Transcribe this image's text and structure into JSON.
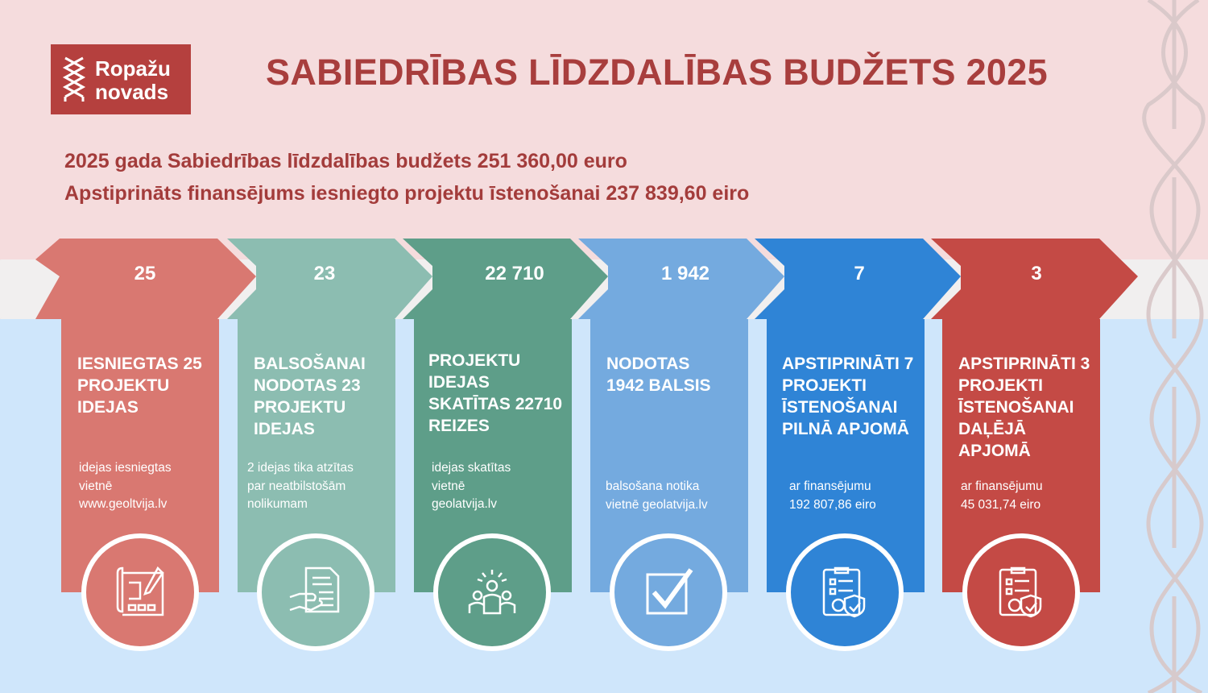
{
  "logo": {
    "line1": "Ropažu",
    "line2": "novads"
  },
  "title": "SABIEDRĪBAS LĪDZDALĪBAS BUDŽETS 2025",
  "subtitle_lines": [
    "2025 gada Sabiedrības līdzdalības budžets 251 360,00 euro",
    "Apstiprināts finansējums iesniegto projektu īstenošanai 237 839,60 eiro"
  ],
  "colors": {
    "step1": "#d97871",
    "step2": "#8cbdb1",
    "step3": "#5e9e89",
    "step4": "#74aadf",
    "step5": "#2f84d6",
    "step6": "#c44a45",
    "title": "#a83e3d",
    "top_band": "#f5dcdd",
    "bottom_band": "#cfe6fb"
  },
  "steps": [
    {
      "number": "25",
      "title": "IESNIEGTAS 25 PROJEKTU IDEJAS",
      "desc": [
        "idejas iesniegtas",
        "vietnē",
        "www.geoltvija.lv"
      ],
      "icon": "blueprint-pen-icon"
    },
    {
      "number": "23",
      "title": "BALSOŠANAI NODOTAS 23 PROJEKTU IDEJAS",
      "desc": [
        "2 idejas tika atzītas",
        "par neatbilstošām",
        "nolikumam"
      ],
      "icon": "hand-document-icon"
    },
    {
      "number": "22 710",
      "title": "PROJEKTU IDEJAS SKATĪTAS 22710 REIZES",
      "desc": [
        "idejas skatītas",
        "vietnē",
        "geolatvija.lv"
      ],
      "icon": "group-idea-icon"
    },
    {
      "number": "1 942",
      "title": "NODOTAS 1942 BALSIS",
      "desc": [
        "balsošana notika",
        "vietnē geolatvija.lv"
      ],
      "icon": "checkbox-icon"
    },
    {
      "number": "7",
      "title": "APSTIPRINĀTI 7 PROJEKTI ĪSTENOŠANAI PILNĀ APJOMĀ",
      "desc": [
        "ar finansējumu",
        "192 807,86 eiro"
      ],
      "icon": "clipboard-gear-shield-icon"
    },
    {
      "number": "3",
      "title": "APSTIPRINĀTI 3 PROJEKTI ĪSTENOŠANAI DAĻĒJĀ APJOMĀ",
      "desc": [
        "ar finansējumu",
        "45 031,74 eiro"
      ],
      "icon": "clipboard-gear-shield-icon"
    }
  ]
}
